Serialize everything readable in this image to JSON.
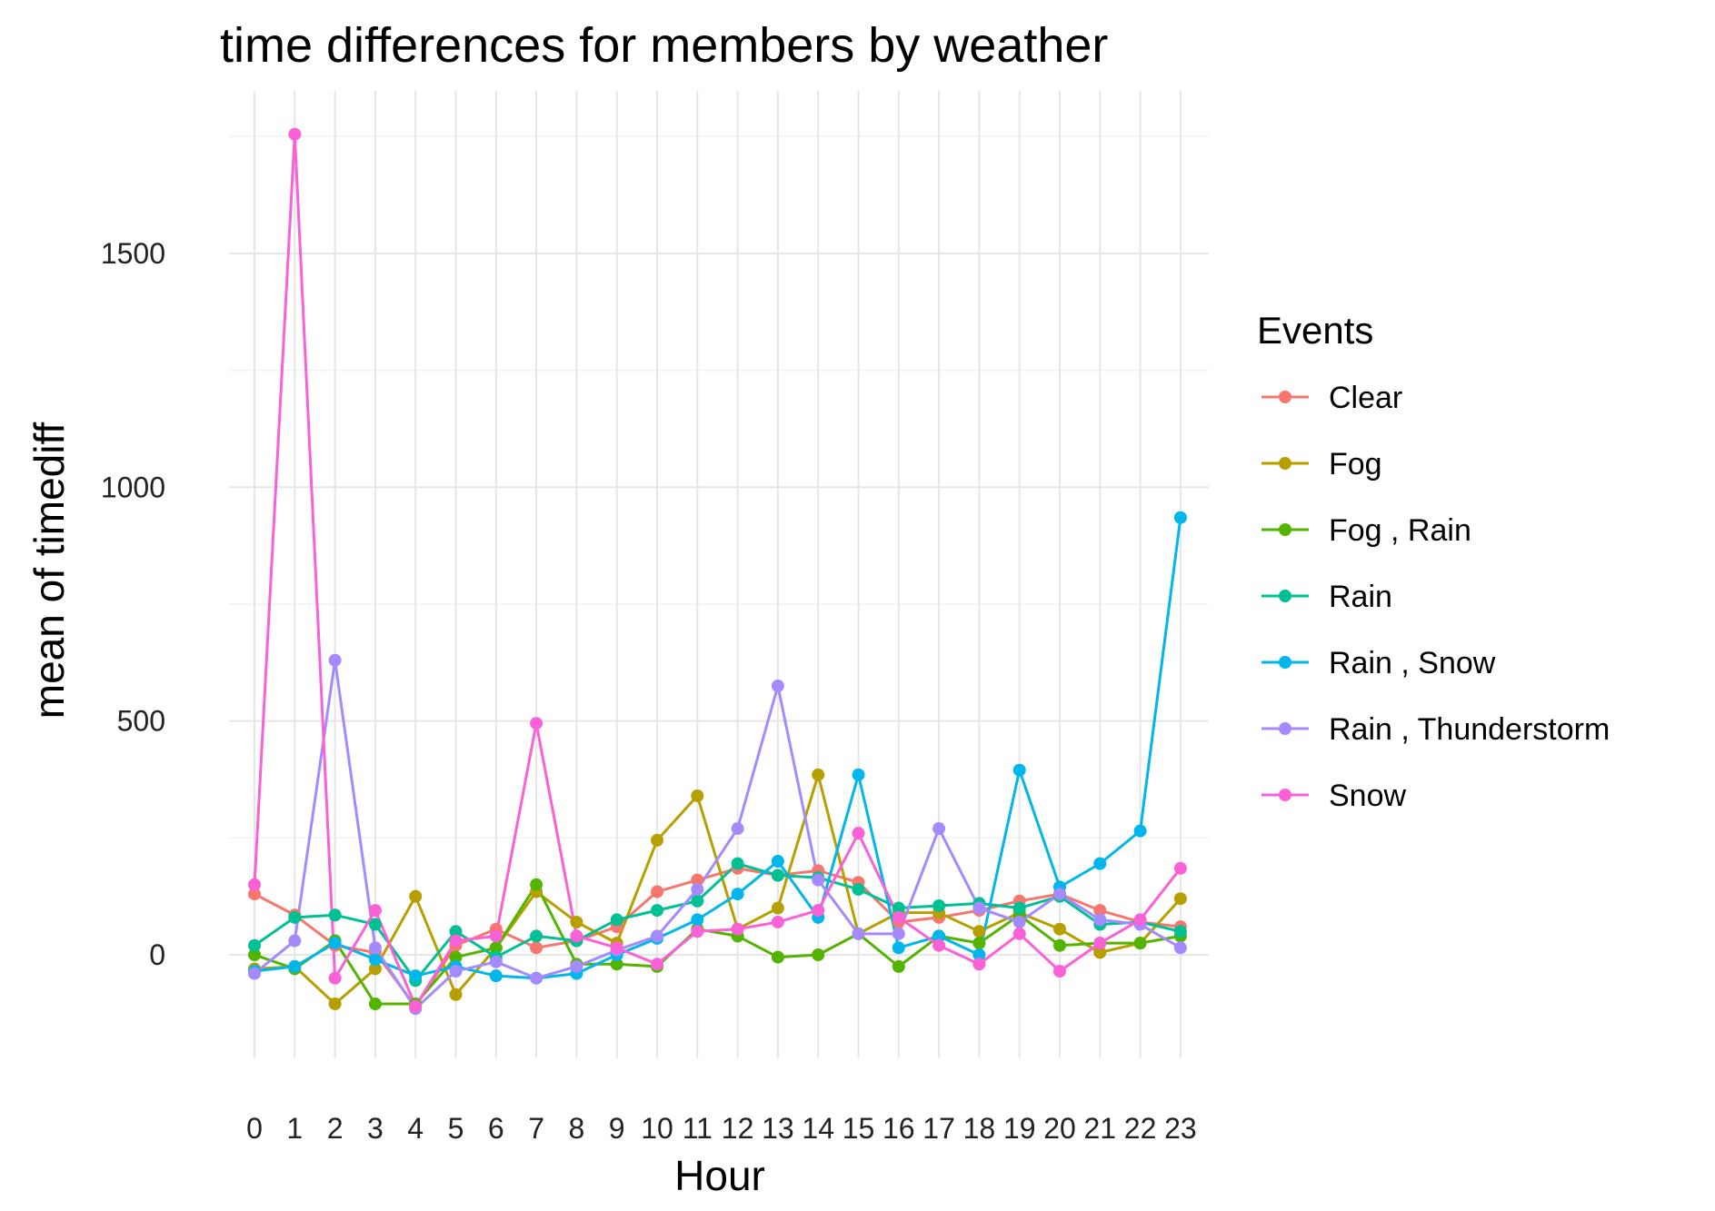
{
  "chart_data": {
    "type": "line",
    "title": "time differences for members by weather",
    "xlabel": "Hour",
    "ylabel": "mean of timediff",
    "x": [
      "0",
      "1",
      "2",
      "3",
      "4",
      "5",
      "6",
      "7",
      "8",
      "9",
      "10",
      "11",
      "12",
      "13",
      "14",
      "15",
      "16",
      "17",
      "18",
      "19",
      "20",
      "21",
      "22",
      "23"
    ],
    "yticks": [
      0,
      500,
      1000,
      1500
    ],
    "ylim": [
      -215,
      1800
    ],
    "grid": true,
    "legend": {
      "title": "Events",
      "position": "right"
    },
    "series": [
      {
        "name": "Clear",
        "color": "#F8766D",
        "values": [
          130,
          85,
          20,
          5,
          -110,
          20,
          55,
          15,
          30,
          60,
          135,
          160,
          185,
          170,
          180,
          155,
          70,
          80,
          95,
          115,
          130,
          95,
          70,
          60
        ]
      },
      {
        "name": "Fog",
        "color": "#B79F00",
        "values": [
          -30,
          -25,
          -105,
          -30,
          125,
          -85,
          15,
          135,
          70,
          25,
          245,
          340,
          55,
          100,
          385,
          45,
          90,
          90,
          50,
          90,
          55,
          5,
          25,
          120
        ]
      },
      {
        "name": "Fog , Rain",
        "color": "#53B400",
        "values": [
          0,
          -30,
          30,
          -105,
          -105,
          -5,
          15,
          150,
          -20,
          -20,
          -25,
          55,
          40,
          -5,
          0,
          45,
          -25,
          40,
          25,
          85,
          20,
          25,
          25,
          40
        ]
      },
      {
        "name": "Rain",
        "color": "#00C094",
        "values": [
          20,
          80,
          85,
          65,
          -55,
          50,
          -5,
          40,
          30,
          75,
          95,
          115,
          195,
          170,
          165,
          140,
          100,
          105,
          110,
          100,
          125,
          65,
          70,
          50
        ]
      },
      {
        "name": "Rain , Snow",
        "color": "#00B6EB",
        "values": [
          -35,
          -25,
          25,
          -10,
          -45,
          -25,
          -45,
          -50,
          -40,
          0,
          35,
          75,
          130,
          200,
          80,
          385,
          15,
          40,
          0,
          395,
          145,
          195,
          265,
          935
        ]
      },
      {
        "name": "Rain , Thunderstorm",
        "color": "#A58AFF",
        "values": [
          -40,
          30,
          630,
          15,
          -115,
          -35,
          -15,
          -50,
          -25,
          10,
          40,
          140,
          270,
          575,
          160,
          45,
          45,
          270,
          100,
          70,
          130,
          75,
          65,
          15
        ]
      },
      {
        "name": "Snow",
        "color": "#FB61D7",
        "values": [
          150,
          1755,
          -50,
          95,
          -110,
          30,
          40,
          495,
          40,
          15,
          -20,
          50,
          55,
          70,
          95,
          260,
          80,
          20,
          -20,
          45,
          -35,
          25,
          75,
          185
        ]
      }
    ]
  }
}
